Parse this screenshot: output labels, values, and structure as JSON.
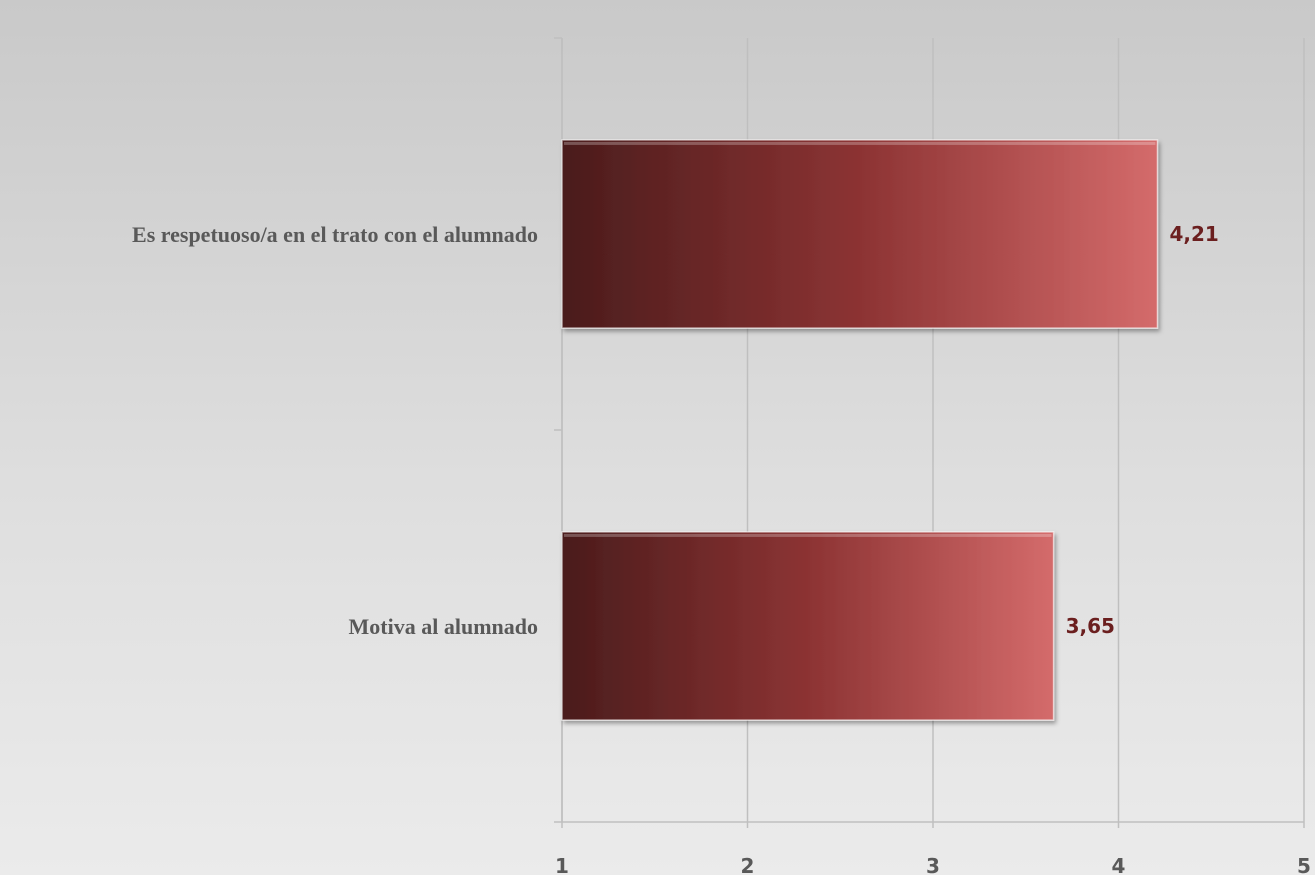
{
  "chart_data": {
    "type": "bar",
    "orientation": "horizontal",
    "categories": [
      "Es respetuoso/a en el trato con el alumnado",
      "Motiva al alumnado"
    ],
    "values": [
      4.21,
      3.65
    ],
    "data_labels": [
      "4,21",
      "3,65"
    ],
    "xlim": [
      1,
      5
    ],
    "x_ticks": [
      1,
      2,
      3,
      4,
      5
    ],
    "x_tick_labels": [
      "1",
      "2",
      "3",
      "4",
      "5"
    ],
    "grid": true,
    "legend": "none",
    "colors": {
      "bar_dark": "#4a1c1c",
      "bar_mid": "#8c3333",
      "bar_light": "#d46b6b",
      "label": "#6b1f1f",
      "gridline": "#bfbfbf",
      "axis_text": "#595959"
    }
  }
}
